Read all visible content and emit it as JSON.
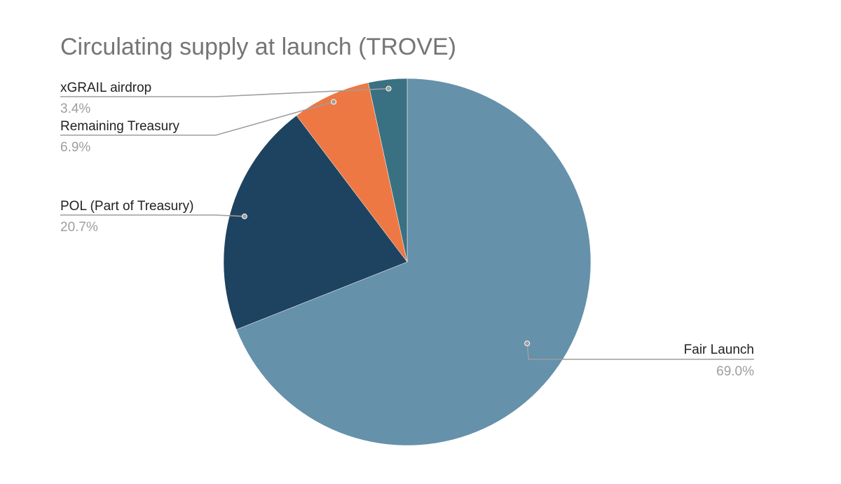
{
  "chart_data": {
    "type": "pie",
    "title": "Circulating supply at launch (TROVE)",
    "slices": [
      {
        "label": "Fair Launch",
        "value": 69.0,
        "value_label": "69.0%",
        "color": "#6591aa"
      },
      {
        "label": "POL (Part of Treasury)",
        "value": 20.7,
        "value_label": "20.7%",
        "color": "#1e4360"
      },
      {
        "label": "Remaining Treasury",
        "value": 6.9,
        "value_label": "6.9%",
        "color": "#ed7844"
      },
      {
        "label": "xGRAIL airdrop",
        "value": 3.4,
        "value_label": "3.4%",
        "color": "#3a7182"
      }
    ],
    "start_angle_deg": 0,
    "direction": "clockwise",
    "legend": "none"
  }
}
